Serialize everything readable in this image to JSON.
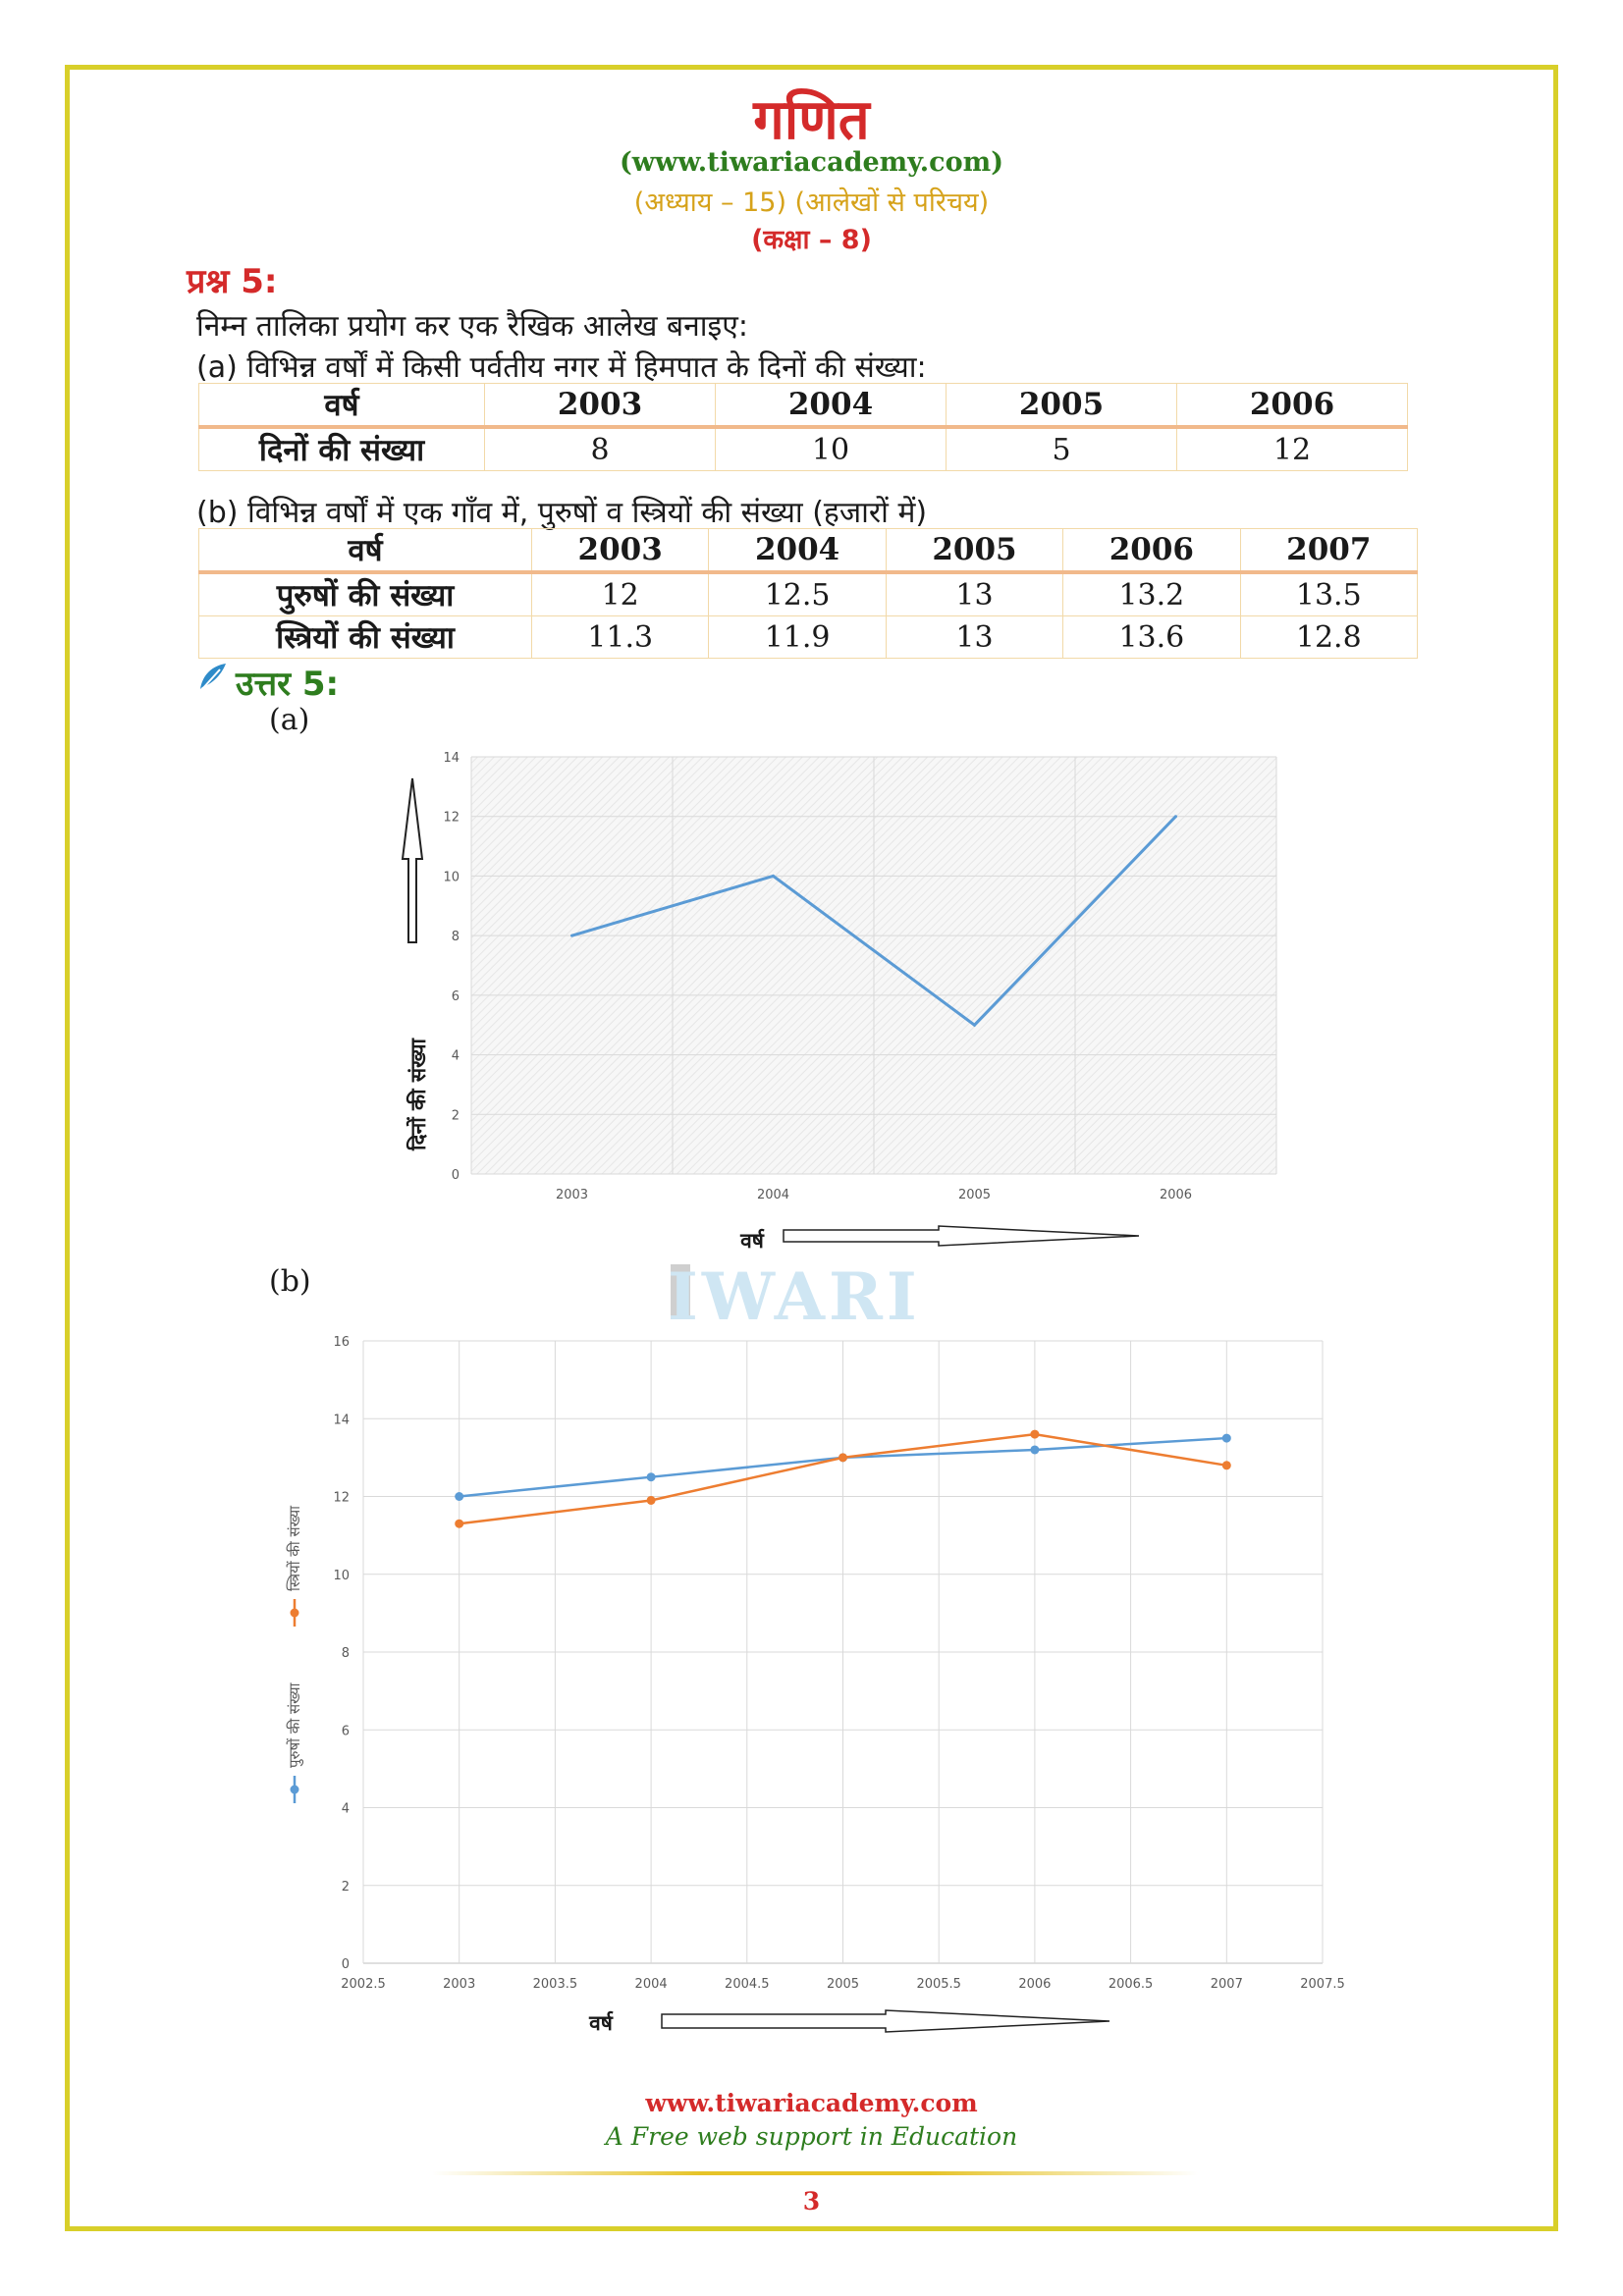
{
  "header": {
    "title": "गणित",
    "website": "(www.tiwariacademy.com)",
    "chapter": "(अध्याय – 15) (आलेखों से परिचय)",
    "class": "(कक्षा – 8)"
  },
  "question": {
    "label": "प्रश्न 5:",
    "instruction": "निम्न तालिका प्रयोग कर एक रैखिक आलेख बनाइए:",
    "part_a_caption": "(a) विभिन्न वर्षों में किसी पर्वतीय नगर में हिमपात के दिनों की संख्या:",
    "table_a": {
      "header": [
        "वर्ष",
        "2003",
        "2004",
        "2005",
        "2006"
      ],
      "rows": [
        [
          "दिनों की संख्या",
          "8",
          "10",
          "5",
          "12"
        ]
      ]
    },
    "part_b_caption": "(b) विभिन्न वर्षों में एक गाँव में, पुरुषों व स्त्रियों की संख्या (हजारों में)",
    "table_b": {
      "header": [
        "वर्ष",
        "2003",
        "2004",
        "2005",
        "2006",
        "2007"
      ],
      "rows": [
        [
          "पुरुषों की संख्या",
          "12",
          "12.5",
          "13",
          "13.2",
          "13.5"
        ],
        [
          "स्त्रियों की संख्या",
          "11.3",
          "11.9",
          "13",
          "13.6",
          "12.8"
        ]
      ]
    }
  },
  "answer": {
    "label": "उत्तर 5:",
    "part_a_label": "(a)",
    "part_b_label": "(b)",
    "watermark": "IWARI"
  },
  "chart_data": [
    {
      "type": "line",
      "x": [
        2003,
        2004,
        2005,
        2006
      ],
      "series": [
        {
          "values": [
            8,
            10,
            5,
            12
          ],
          "color": "#5b9bd5"
        }
      ],
      "xlabel": "वर्ष",
      "ylabel": "दिनों की संख्या",
      "ylim": [
        0,
        14
      ],
      "yticks": [
        0,
        2,
        4,
        6,
        8,
        10,
        12,
        14
      ],
      "xticks": [
        "2003",
        "2004",
        "2005",
        "2006"
      ],
      "grid": true
    },
    {
      "type": "line",
      "x": [
        2003,
        2004,
        2005,
        2006,
        2007
      ],
      "series": [
        {
          "name": "पुरुषों की संख्या",
          "values": [
            12,
            12.5,
            13,
            13.2,
            13.5
          ],
          "color": "#5b9bd5"
        },
        {
          "name": "स्त्रियों की संख्या",
          "values": [
            11.3,
            11.9,
            13,
            13.6,
            12.8
          ],
          "color": "#ed7d31"
        }
      ],
      "xlabel": "वर्ष",
      "xlim": [
        2002.5,
        2007.5
      ],
      "ylim": [
        0,
        16
      ],
      "yticks": [
        0,
        2,
        4,
        6,
        8,
        10,
        12,
        14,
        16
      ],
      "xticks": [
        "2002.5",
        "2003",
        "2003.5",
        "2004",
        "2004.5",
        "2005",
        "2005.5",
        "2006",
        "2006.5",
        "2007",
        "2007.5"
      ],
      "legend": "left-vertical",
      "grid": true
    }
  ],
  "footer": {
    "website": "www.tiwariacademy.com",
    "tagline": "A Free web support in Education",
    "page_number": "3"
  }
}
